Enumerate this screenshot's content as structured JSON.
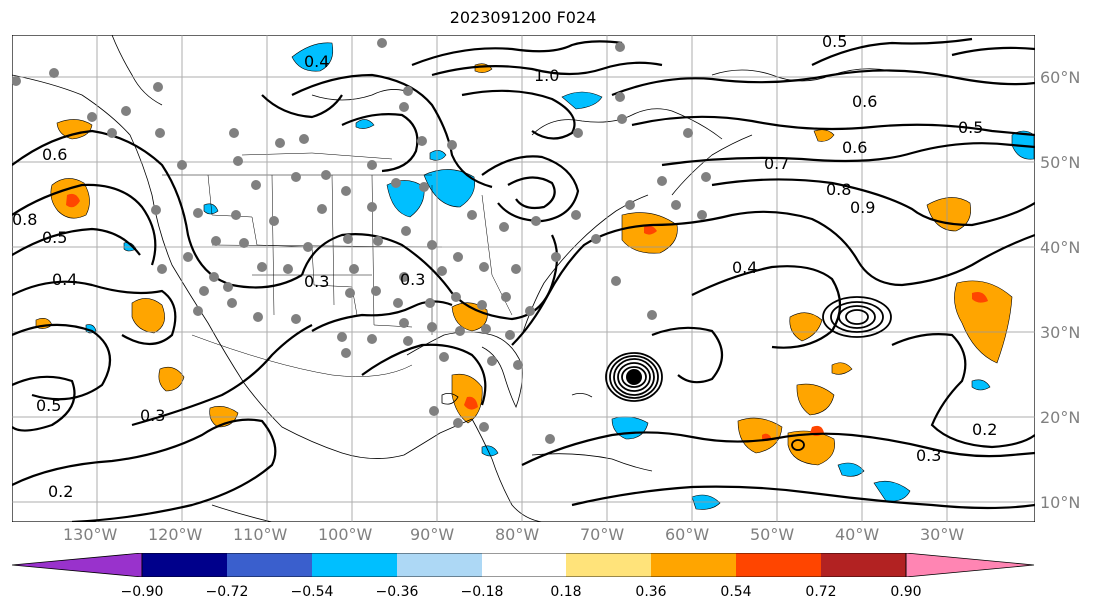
{
  "title": "2023091200 F024",
  "lon_labels": [
    "130°W",
    "120°W",
    "110°W",
    "100°W",
    "90°W",
    "80°W",
    "70°W",
    "60°W",
    "50°W",
    "40°W",
    "30°W"
  ],
  "lat_labels": [
    "60°N",
    "50°N",
    "40°N",
    "30°N",
    "20°N",
    "10°N"
  ],
  "contour_labels": [
    "0.4",
    "0.6",
    "0.5",
    "0.8",
    "0.9",
    "1.0",
    "0.3",
    "0.2",
    "0.7",
    "0.6",
    "0.5",
    "0.4",
    "0.3",
    "0.8",
    "0.5",
    "0.4",
    "0.6",
    "0.3",
    "0.2",
    "0.3",
    "0.5"
  ],
  "colorbar": {
    "tick_labels": [
      "−0.90",
      "−0.72",
      "−0.54",
      "−0.36",
      "−0.18",
      "0.18",
      "0.36",
      "0.54",
      "0.72",
      "0.90"
    ],
    "colors": [
      "#9932CC",
      "#00008B",
      "#3A5FCD",
      "#00BFFF",
      "#ADD8F5",
      "#FFFFFF",
      "#FFE37A",
      "#FFA500",
      "#FF4500",
      "#B22222",
      "#FF85B3"
    ]
  },
  "colors": {
    "positive_fill": "#FFA500",
    "positive_core": "#FF4500",
    "negative_fill": "#00BFFF",
    "station_dot": "#808080",
    "contour": "#000000"
  }
}
